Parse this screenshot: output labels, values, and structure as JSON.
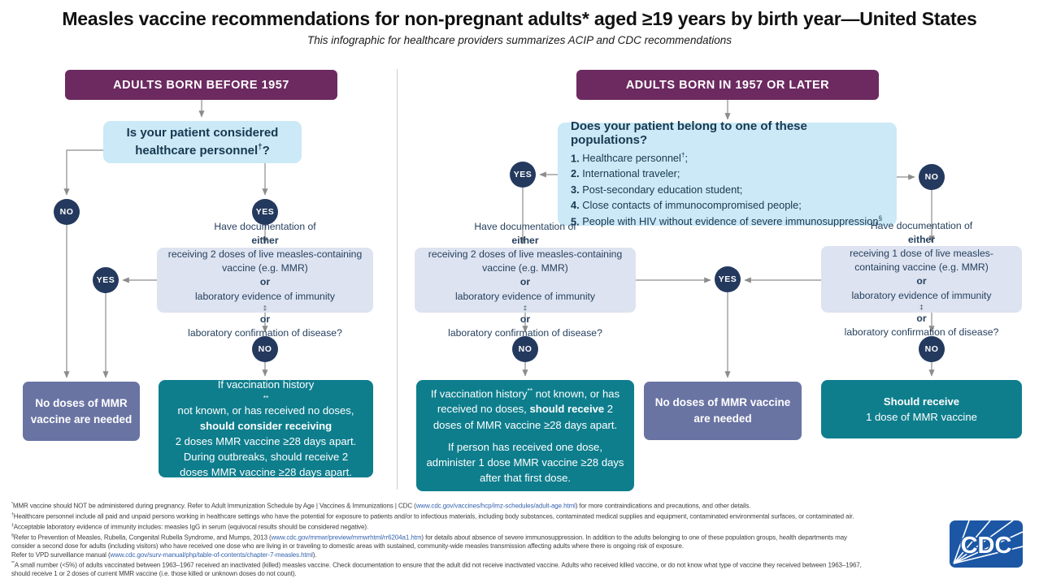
{
  "page": {
    "title": "Measles vaccine recommendations for non-pregnant adults* aged ≥19 years by birth year—United States",
    "subtitle": "This infographic for healthcare providers summarizes ACIP and CDC recommendations"
  },
  "labels": {
    "yes": "YES",
    "no": "NO"
  },
  "colors": {
    "plum_header": "#6c2a60",
    "light_blue_question": "#cbe9f6",
    "pale_decision": "#dde3f0",
    "navy_node": "#24395e",
    "slate_outcome": "#6a74a3",
    "teal_action": "#0e7e8d",
    "arrow_gray": "#8c8c8c",
    "link_blue": "#3663ad",
    "cdc_logo_blue": "#1c57a5"
  },
  "left": {
    "header": "ADULTS BORN BEFORE 1957",
    "question": [
      {
        "t": "Is your patient considered healthcare personnel"
      },
      {
        "t": "†",
        "sup": true
      },
      {
        "t": "?"
      }
    ],
    "decision": [
      {
        "t": "Have documentation of "
      },
      {
        "t": "either",
        "b": true
      },
      {
        "t": " receiving 2 doses of live measles-containing vaccine (e.g. MMR) "
      },
      {
        "t": "or",
        "b": true
      },
      {
        "t": " laboratory evidence of immunity"
      },
      {
        "t": "‡",
        "sup": true
      },
      {
        "t": " "
      },
      {
        "t": "or",
        "b": true
      },
      {
        "t": " laboratory confirmation of disease?"
      }
    ],
    "no_doses": "No doses of MMR vaccine are needed",
    "action": [
      {
        "t": "If vaccination history"
      },
      {
        "t": "**",
        "sup": true
      },
      {
        "t": " not known, or has received no doses, "
      },
      {
        "t": "should consider receiving",
        "b": true
      },
      {
        "t": " 2 doses MMR vaccine ≥28 days apart. During outbreaks, should receive 2 doses MMR vaccine ≥28 days apart."
      }
    ]
  },
  "right": {
    "header": "ADULTS BORN IN 1957 OR LATER",
    "question_title": "Does your patient belong to one of these populations?",
    "populations": [
      {
        "num": "1.",
        "parts": [
          {
            "t": "Healthcare personnel"
          },
          {
            "t": "†",
            "sup": true
          },
          {
            "t": ";"
          }
        ]
      },
      {
        "num": "2.",
        "parts": [
          {
            "t": "International traveler;"
          }
        ]
      },
      {
        "num": "3.",
        "parts": [
          {
            "t": "Post-secondary education student;"
          }
        ]
      },
      {
        "num": "4.",
        "parts": [
          {
            "t": "Close contacts of immunocompromised people;"
          }
        ]
      },
      {
        "num": "5.",
        "parts": [
          {
            "t": "People with HIV without evidence of severe immunosuppression"
          },
          {
            "t": "§",
            "sup": true
          }
        ]
      }
    ],
    "decision_2dose": [
      {
        "t": "Have documentation of "
      },
      {
        "t": "either",
        "b": true
      },
      {
        "t": " receiving 2 doses of live measles-containing vaccine (e.g. MMR) "
      },
      {
        "t": "or",
        "b": true
      },
      {
        "t": " laboratory evidence of immunity"
      },
      {
        "t": "‡",
        "sup": true
      },
      {
        "t": " "
      },
      {
        "t": "or",
        "b": true
      },
      {
        "t": " laboratory confirmation of disease?"
      }
    ],
    "decision_1dose": [
      {
        "t": "Have documentation of "
      },
      {
        "t": "either",
        "b": true
      },
      {
        "t": " receiving 1 dose of live measles-containing vaccine (e.g. MMR) "
      },
      {
        "t": "or",
        "b": true
      },
      {
        "t": " laboratory evidence of immunity"
      },
      {
        "t": "‡",
        "sup": true
      },
      {
        "t": " "
      },
      {
        "t": "or",
        "b": true
      },
      {
        "t": " laboratory confirmation of disease?"
      }
    ],
    "no_doses": "No doses of MMR vaccine are needed",
    "action_unknown_p1": [
      {
        "t": "If vaccination history"
      },
      {
        "t": "**",
        "sup": true
      },
      {
        "t": " not known, or has received no doses, "
      },
      {
        "t": "should receive",
        "b": true
      },
      {
        "t": " 2 doses of MMR vaccine ≥28 days apart."
      }
    ],
    "action_unknown_p2": [
      {
        "t": "If person has received one dose, administer 1 dose MMR vaccine ≥28 days after that first dose."
      }
    ],
    "action_1dose": [
      {
        "t": "Should receive",
        "b": true
      },
      {
        "t": " 1 dose of MMR vaccine"
      }
    ]
  },
  "footnotes": [
    [
      {
        "t": "*",
        "sup": true
      },
      {
        "t": "MMR vaccine should NOT be administered during pregnancy. Refer to Adult Immunization Schedule by Age | Vaccines & Immunizations | CDC ("
      },
      {
        "t": "www.cdc.gov/vaccines/hcp/imz-schedules/adult-age.html",
        "link": true
      },
      {
        "t": ") for more contraindications and precautions, and other details."
      }
    ],
    [
      {
        "t": "†",
        "sup": true
      },
      {
        "t": "Healthcare personnel include all paid and unpaid persons working in healthcare settings who have the potential for exposure to patients and/or to infectious materials, including body substances, contaminated medical supplies and equipment, contaminated environmental surfaces, or contaminated air."
      }
    ],
    [
      {
        "t": "‡",
        "sup": true
      },
      {
        "t": "Acceptable laboratory evidence of immunity includes: measles IgG in serum (equivocal results should be considered negative)."
      }
    ],
    [
      {
        "t": "§",
        "sup": true
      },
      {
        "t": "Refer to Prevention of Measles, Rubella, Congenital Rubella Syndrome, and Mumps, 2013 ("
      },
      {
        "t": "www.cdc.gov/mmwr/preview/mmwrhtml/rr6204a1.htm",
        "link": true
      },
      {
        "t": ") for details about absence of severe immunosuppression. In addition to the adults belonging to one of these population groups, health departments may"
      }
    ],
    [
      {
        "t": "consider a second dose for adults (including visitors) who have received one dose who are living in or traveling to domestic areas with sustained, community-wide measles transmission affecting adults where there is ongoing risk of exposure."
      }
    ],
    [
      {
        "t": "Refer to VPD surveillance manual ("
      },
      {
        "t": "www.cdc.gov/surv-manual/php/table-of-contents/chapter-7-measles.html",
        "link": true
      },
      {
        "t": ")."
      }
    ],
    [
      {
        "t": "**",
        "sup": true
      },
      {
        "t": "A small number (<5%) of adults vaccinated between 1963–1967 received an inactivated (killed) measles vaccine. Check documentation to ensure that the adult did not receive inactivated vaccine. Adults who received killed vaccine, or do not know what type of vaccine they received between 1963–1967,"
      }
    ],
    [
      {
        "t": "should receive 1 or 2 doses of current MMR vaccine (i.e. those killed or unknown doses do not count)."
      }
    ]
  ],
  "logo": {
    "text": "CDC"
  }
}
